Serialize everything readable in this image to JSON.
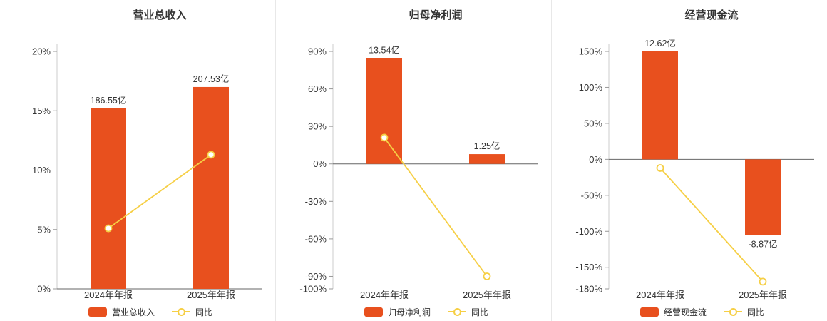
{
  "colors": {
    "bar": "#e8501e",
    "line": "#f6cf45",
    "axis": "#cccccc",
    "zero_line": "#666666",
    "tick": "#999999",
    "text": "#333333",
    "divider": "#e8e8e8",
    "background": "#ffffff"
  },
  "chart_data": [
    {
      "type": "bar",
      "title": "营业总收入",
      "categories": [
        "2024年年报",
        "2025年年报"
      ],
      "series": [
        {
          "name": "营业总收入",
          "type": "bar",
          "values_pct": [
            15.2,
            17.0
          ],
          "labels": [
            "186.55亿",
            "207.53亿"
          ]
        },
        {
          "name": "同比",
          "type": "line",
          "values_pct": [
            5.1,
            11.3
          ]
        }
      ],
      "ylim": [
        0,
        20
      ],
      "yticks": [
        20,
        15,
        10,
        5,
        0
      ],
      "ylabel_suffix": "%",
      "legend_position": "bottom",
      "grid": false
    },
    {
      "type": "bar",
      "title": "归母净利润",
      "categories": [
        "2024年年报",
        "2025年年报"
      ],
      "series": [
        {
          "name": "归母净利润",
          "type": "bar",
          "values_pct": [
            84.5,
            7.8
          ],
          "labels": [
            "13.54亿",
            "1.25亿"
          ]
        },
        {
          "name": "同比",
          "type": "line",
          "values_pct": [
            21.0,
            -90.0
          ]
        }
      ],
      "ylim": [
        -100,
        90
      ],
      "yticks": [
        90,
        60,
        30,
        0,
        -30,
        -60,
        -90,
        -100
      ],
      "ylabel_suffix": "%",
      "legend_position": "bottom",
      "grid": false
    },
    {
      "type": "bar",
      "title": "经营现金流",
      "categories": [
        "2024年年报",
        "2025年年报"
      ],
      "series": [
        {
          "name": "经营现金流",
          "type": "bar",
          "values_pct": [
            150.0,
            -105.0
          ],
          "labels": [
            "12.62亿",
            "-8.87亿"
          ]
        },
        {
          "name": "同比",
          "type": "line",
          "values_pct": [
            -12.0,
            -170.0
          ]
        }
      ],
      "ylim": [
        -180,
        150
      ],
      "yticks": [
        150,
        100,
        50,
        0,
        -50,
        -100,
        -150,
        -180
      ],
      "ylabel_suffix": "%",
      "legend_position": "bottom",
      "grid": false
    }
  ]
}
